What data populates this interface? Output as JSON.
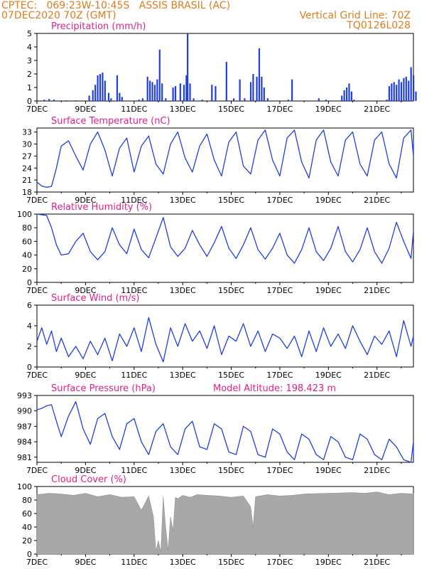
{
  "header": {
    "line1": "CPTEC:   069:23W-10:45S   ASSIS BRASIL (AC)",
    "line2": "07DEC2020 70Z (GMT)",
    "grid_note": "Vertical Grid Line: 70Z",
    "model_code": "TQ0126L028"
  },
  "colors": {
    "header": "#e07b20",
    "title": "#e0208a",
    "series": "#1f3fe0",
    "cloud": "#a8a8a8"
  },
  "x_ticks": [
    "7DEC",
    "9DEC",
    "11DEC",
    "13DEC",
    "15DEC",
    "17DEC",
    "19DEC",
    "21DEC"
  ],
  "chart_data": [
    {
      "type": "bar",
      "title": "Precipitation (mm/h)",
      "ylim": [
        0,
        5
      ],
      "yticks": [
        "0",
        "1",
        "2",
        "3",
        "4",
        "5"
      ],
      "x_range_days": [
        7,
        22
      ],
      "bars": [
        [
          7.3,
          0.1
        ],
        [
          7.5,
          0.15
        ],
        [
          7.7,
          0.1
        ],
        [
          8.2,
          0.05
        ],
        [
          8.6,
          0.05
        ],
        [
          9.15,
          0.4
        ],
        [
          9.3,
          0.8
        ],
        [
          9.4,
          1.2
        ],
        [
          9.5,
          1.9
        ],
        [
          9.6,
          2.0
        ],
        [
          9.7,
          2.1
        ],
        [
          9.8,
          1.5
        ],
        [
          9.95,
          0.6
        ],
        [
          10.05,
          0.2
        ],
        [
          10.3,
          1.9
        ],
        [
          10.4,
          0.6
        ],
        [
          10.5,
          0.3
        ],
        [
          11.2,
          0.1
        ],
        [
          11.35,
          0.2
        ],
        [
          11.55,
          1.8
        ],
        [
          11.65,
          1.5
        ],
        [
          11.75,
          1.4
        ],
        [
          11.85,
          1.2
        ],
        [
          11.95,
          1.6
        ],
        [
          12.05,
          3.8
        ],
        [
          12.15,
          1.3
        ],
        [
          12.3,
          0.2
        ],
        [
          12.6,
          1.0
        ],
        [
          12.7,
          1.1
        ],
        [
          12.9,
          1.3
        ],
        [
          13.05,
          1.2
        ],
        [
          13.15,
          1.9
        ],
        [
          13.2,
          5.0
        ],
        [
          13.3,
          1.3
        ],
        [
          13.45,
          0.2
        ],
        [
          13.8,
          0.1
        ],
        [
          14.2,
          1.2
        ],
        [
          14.35,
          1.1
        ],
        [
          14.8,
          2.9
        ],
        [
          15.1,
          0.2
        ],
        [
          15.35,
          1.6
        ],
        [
          15.55,
          0.2
        ],
        [
          15.8,
          1.4
        ],
        [
          15.9,
          2.0
        ],
        [
          16.05,
          1.8
        ],
        [
          16.15,
          3.9
        ],
        [
          16.25,
          1.8
        ],
        [
          16.35,
          1.0
        ],
        [
          16.5,
          0.2
        ],
        [
          17.35,
          0.1
        ],
        [
          17.5,
          1.6
        ],
        [
          18.6,
          0.2
        ],
        [
          18.9,
          0.1
        ],
        [
          19.55,
          0.4
        ],
        [
          19.65,
          0.8
        ],
        [
          19.75,
          1.0
        ],
        [
          19.85,
          1.3
        ],
        [
          19.95,
          0.7
        ],
        [
          20.05,
          0.1
        ],
        [
          21.4,
          0.1
        ],
        [
          21.5,
          1.1
        ],
        [
          21.6,
          1.3
        ],
        [
          21.7,
          1.4
        ],
        [
          21.8,
          1.2
        ],
        [
          21.9,
          1.6
        ],
        [
          22.0,
          1.4
        ],
        [
          22.1,
          1.7
        ],
        [
          22.2,
          1.8
        ],
        [
          22.3,
          1.5
        ],
        [
          22.4,
          2.5
        ],
        [
          22.5,
          1.9
        ],
        [
          22.6,
          0.7
        ]
      ]
    },
    {
      "type": "line",
      "title": "Surface Temperature (nC)",
      "ylim": [
        18,
        34
      ],
      "yticks": [
        "18",
        "21",
        "24",
        "27",
        "30",
        "33"
      ],
      "x": [
        7.0,
        7.2,
        7.4,
        7.6,
        7.8,
        8.0,
        8.3,
        8.6,
        8.9,
        9.2,
        9.5,
        9.8,
        10.1,
        10.4,
        10.7,
        11.0,
        11.3,
        11.6,
        11.9,
        12.2,
        12.5,
        12.8,
        13.1,
        13.4,
        13.7,
        14.0,
        14.3,
        14.6,
        14.9,
        15.2,
        15.5,
        15.8,
        16.1,
        16.4,
        16.7,
        17.0,
        17.3,
        17.6,
        17.9,
        18.2,
        18.5,
        18.8,
        19.1,
        19.4,
        19.7,
        20.0,
        20.3,
        20.6,
        20.9,
        21.2,
        21.5,
        21.8,
        22.1,
        22.4,
        22.7,
        23.0
      ],
      "y": [
        20.5,
        19.5,
        19.2,
        19.4,
        24.0,
        29.5,
        30.8,
        27.0,
        23.5,
        30.0,
        33.0,
        28.5,
        22.0,
        29.0,
        31.5,
        23.0,
        29.5,
        32.0,
        25.0,
        22.5,
        30.0,
        33.0,
        26.5,
        23.0,
        29.5,
        32.5,
        26.0,
        22.0,
        30.5,
        33.0,
        24.5,
        22.5,
        31.0,
        33.5,
        26.0,
        22.0,
        31.5,
        33.5,
        25.5,
        21.5,
        31.0,
        33.5,
        25.5,
        22.0,
        31.0,
        33.0,
        25.0,
        22.0,
        31.0,
        33.0,
        25.0,
        21.5,
        31.5,
        33.5,
        27.0,
        30.5
      ]
    },
    {
      "type": "line",
      "title": "Relative Humidity (%)",
      "ylim": [
        0,
        100
      ],
      "yticks": [
        "0",
        "20",
        "40",
        "60",
        "80",
        "100"
      ],
      "x": [
        7.0,
        7.2,
        7.4,
        7.6,
        7.8,
        8.0,
        8.3,
        8.6,
        8.9,
        9.2,
        9.5,
        9.8,
        10.1,
        10.4,
        10.7,
        11.0,
        11.3,
        11.6,
        11.9,
        12.2,
        12.5,
        12.8,
        13.1,
        13.4,
        13.7,
        14.0,
        14.3,
        14.6,
        14.9,
        15.2,
        15.5,
        15.8,
        16.1,
        16.4,
        16.7,
        17.0,
        17.3,
        17.6,
        17.9,
        18.2,
        18.5,
        18.8,
        19.1,
        19.4,
        19.7,
        20.0,
        20.3,
        20.6,
        20.9,
        21.2,
        21.5,
        21.8,
        22.1,
        22.4,
        22.7,
        23.0
      ],
      "y": [
        100,
        99,
        98,
        80,
        55,
        40,
        42,
        60,
        72,
        45,
        33,
        45,
        80,
        55,
        42,
        78,
        48,
        36,
        65,
        95,
        52,
        38,
        50,
        76,
        55,
        38,
        58,
        82,
        50,
        35,
        55,
        80,
        48,
        34,
        50,
        72,
        40,
        28,
        48,
        80,
        45,
        32,
        50,
        82,
        45,
        30,
        48,
        80,
        45,
        28,
        50,
        88,
        60,
        35,
        75,
        70
      ]
    },
    {
      "type": "line",
      "title": "Surface Wind (m/s)",
      "ylim": [
        0,
        6
      ],
      "yticks": [
        "0",
        "2",
        "4",
        "6"
      ],
      "x": [
        7.0,
        7.2,
        7.4,
        7.6,
        7.8,
        8.0,
        8.3,
        8.6,
        8.9,
        9.2,
        9.5,
        9.8,
        10.1,
        10.4,
        10.7,
        11.0,
        11.3,
        11.6,
        11.9,
        12.2,
        12.5,
        12.8,
        13.1,
        13.4,
        13.7,
        14.0,
        14.3,
        14.6,
        14.9,
        15.2,
        15.5,
        15.8,
        16.1,
        16.4,
        16.7,
        17.0,
        17.3,
        17.6,
        17.9,
        18.2,
        18.5,
        18.8,
        19.1,
        19.4,
        19.7,
        20.0,
        20.3,
        20.6,
        20.9,
        21.2,
        21.5,
        21.8,
        22.1,
        22.4,
        22.7,
        23.0
      ],
      "y": [
        2.5,
        3.8,
        2.2,
        3.5,
        1.5,
        2.8,
        1.0,
        2.0,
        0.8,
        2.5,
        1.2,
        2.8,
        0.6,
        3.2,
        2.0,
        3.8,
        1.5,
        4.8,
        2.2,
        0.5,
        3.8,
        2.0,
        4.2,
        2.5,
        3.5,
        1.8,
        4.0,
        1.2,
        3.0,
        2.5,
        4.2,
        2.0,
        3.5,
        1.5,
        3.2,
        2.8,
        1.8,
        3.0,
        1.0,
        3.5,
        1.5,
        3.8,
        2.0,
        3.2,
        1.8,
        4.0,
        2.5,
        1.2,
        3.0,
        2.2,
        3.5,
        1.0,
        4.5,
        2.0,
        3.0,
        2.2
      ]
    },
    {
      "type": "line",
      "title": "Surface Pressure (hPa)",
      "annotation": "Model Altitude: 198.423 m",
      "ylim": [
        980,
        993
      ],
      "yticks": [
        "981",
        "984",
        "987",
        "990",
        "993"
      ],
      "x": [
        7.0,
        7.2,
        7.4,
        7.6,
        7.8,
        8.0,
        8.3,
        8.6,
        8.9,
        9.2,
        9.5,
        9.8,
        10.1,
        10.4,
        10.7,
        11.0,
        11.3,
        11.6,
        11.9,
        12.2,
        12.5,
        12.8,
        13.1,
        13.4,
        13.7,
        14.0,
        14.3,
        14.6,
        14.9,
        15.2,
        15.5,
        15.8,
        16.1,
        16.4,
        16.7,
        17.0,
        17.3,
        17.6,
        17.9,
        18.2,
        18.5,
        18.8,
        19.1,
        19.4,
        19.7,
        20.0,
        20.3,
        20.6,
        20.9,
        21.2,
        21.5,
        21.8,
        22.1,
        22.4,
        22.7,
        23.0
      ],
      "y": [
        990.2,
        990.5,
        991.0,
        991.2,
        988.0,
        985.0,
        989.0,
        991.8,
        986.5,
        983.5,
        988.5,
        989.5,
        985.0,
        982.5,
        987.5,
        988.5,
        984.0,
        981.5,
        986.0,
        987.5,
        983.0,
        981.5,
        986.5,
        988.0,
        983.0,
        982.5,
        987.5,
        986.5,
        982.0,
        981.5,
        987.0,
        986.0,
        981.5,
        981.0,
        986.5,
        985.5,
        982.0,
        980.5,
        985.5,
        984.5,
        981.5,
        980.5,
        985.0,
        984.0,
        981.0,
        980.5,
        985.5,
        984.5,
        981.5,
        980.5,
        984.5,
        983.0,
        980.5,
        980.0,
        984.0,
        981.5
      ]
    },
    {
      "type": "area",
      "title": "Cloud Cover (%)",
      "ylim": [
        0,
        100
      ],
      "yticks": [
        "0",
        "20",
        "40",
        "60",
        "80",
        "100"
      ],
      "x": [
        7.0,
        7.5,
        8.0,
        8.5,
        9.0,
        9.5,
        10.0,
        10.5,
        11.0,
        11.3,
        11.6,
        11.8,
        11.9,
        12.0,
        12.1,
        12.2,
        12.3,
        12.4,
        12.5,
        12.6,
        12.7,
        12.8,
        13.0,
        13.3,
        13.6,
        14.0,
        14.5,
        15.0,
        15.5,
        15.8,
        15.9,
        16.0,
        16.5,
        17.0,
        17.5,
        18.0,
        19.0,
        20.0,
        20.5,
        21.0,
        21.5,
        22.0,
        22.5,
        23.0
      ],
      "y": [
        88,
        90,
        89,
        87,
        90,
        85,
        88,
        84,
        85,
        65,
        86,
        55,
        5,
        20,
        3,
        85,
        40,
        6,
        55,
        35,
        84,
        82,
        87,
        84,
        88,
        87,
        86,
        84,
        86,
        70,
        40,
        85,
        88,
        86,
        87,
        89,
        90,
        91,
        90,
        92,
        88,
        90,
        89,
        90
      ]
    }
  ]
}
